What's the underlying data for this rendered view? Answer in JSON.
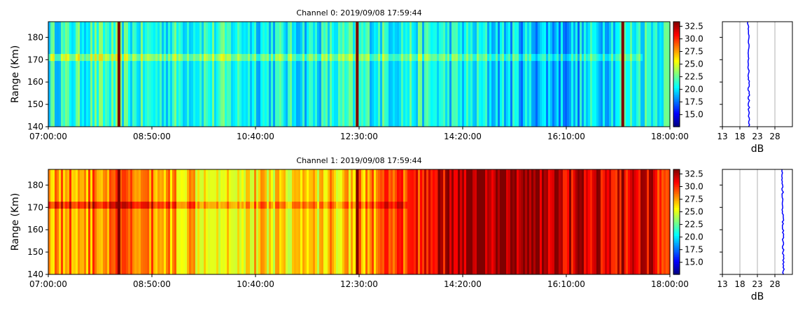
{
  "colormap": {
    "name": "jet",
    "stops": [
      "#00007f",
      "#0000ff",
      "#007fff",
      "#00ffff",
      "#7fff7f",
      "#ffff00",
      "#ff7f00",
      "#ff0000",
      "#7f0000"
    ],
    "vmin": 12.6,
    "vmax": 33.4
  },
  "line_color": "#0000ff",
  "grid_color": "#b0b0b0",
  "chart_data": [
    {
      "type": "heatmap",
      "title": "Channel 0: 2019/09/08 17:59:44",
      "xlabel": "",
      "ylabel": "Range (Km)",
      "x_range": [
        "07:00:00",
        "18:00:00"
      ],
      "x_ticks": [
        "07:00:00",
        "08:50:00",
        "10:40:00",
        "12:30:00",
        "14:20:00",
        "16:10:00",
        "18:00:00"
      ],
      "y_range": [
        140,
        187
      ],
      "y_ticks": [
        "140",
        "150",
        "160",
        "170",
        "180"
      ],
      "colorbar_ticks": [
        "15.0",
        "17.5",
        "20.0",
        "22.5",
        "25.0",
        "27.5",
        "30.0",
        "32.5"
      ],
      "echo_band_km": 171,
      "echo_end": "17:30:00",
      "background_dB": [
        20.8,
        21.5,
        20.7,
        21.3,
        20.6,
        20.4,
        21.0,
        20.9,
        20.3,
        19.6,
        19.0,
        20.7,
        21.6
      ],
      "strong_spikes": [
        "08:15:00",
        "12:28:00",
        "17:10:00"
      ],
      "profile": {
        "xlabel": "dB",
        "x_ticks": [
          "13",
          "18",
          "23",
          "28"
        ],
        "xlim": [
          13,
          33
        ],
        "mean_dB": 20.5
      }
    },
    {
      "type": "heatmap",
      "title": "Channel 1: 2019/09/08 17:59:44",
      "xlabel": "",
      "ylabel": "Range (Km)",
      "x_range": [
        "07:00:00",
        "18:00:00"
      ],
      "x_ticks": [
        "07:00:00",
        "08:50:00",
        "10:40:00",
        "12:30:00",
        "14:20:00",
        "16:10:00",
        "18:00:00"
      ],
      "y_range": [
        140,
        187
      ],
      "y_ticks": [
        "140",
        "150",
        "160",
        "170",
        "180"
      ],
      "colorbar_ticks": [
        "15.0",
        "17.5",
        "20.0",
        "22.5",
        "25.0",
        "27.5",
        "30.0",
        "32.5"
      ],
      "echo_band_km": 171,
      "echo_end": "13:20:00",
      "background_dB": [
        28.0,
        27.8,
        28.3,
        27.5,
        26.5,
        26.0,
        26.3,
        26.2,
        27.5,
        28.8,
        31.5,
        32.8,
        33.4,
        32.4,
        31.3,
        31.1,
        31.0
      ],
      "strong_spikes": [
        "08:15:00",
        "12:28:00",
        "13:55:00",
        "15:02:00",
        "17:10:00"
      ],
      "profile": {
        "xlabel": "dB",
        "x_ticks": [
          "13",
          "18",
          "23",
          "28"
        ],
        "xlim": [
          13,
          33
        ],
        "mean_dB": 30.3
      }
    }
  ]
}
